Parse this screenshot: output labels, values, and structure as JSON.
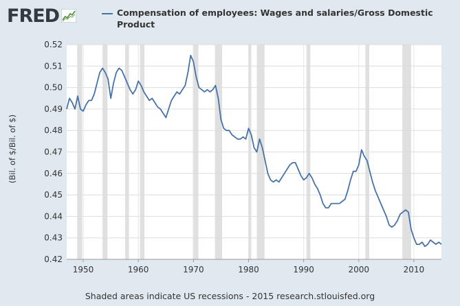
{
  "brand": {
    "logo_text": "FRED"
  },
  "legend": {
    "label": "Compensation of employees: Wages and salaries/Gross Domestic Product"
  },
  "footer": {
    "note": "Shaded areas indicate US recessions - 2015 research.stlouisfed.org"
  },
  "colors": {
    "line": "#4572a7",
    "recession": "#e0e0e0",
    "background": "#e1e9f0",
    "plot_bg": "#ffffff"
  },
  "chart_data": {
    "type": "line",
    "title": "",
    "xlabel": "",
    "ylabel": "(Bil. of $/Bil. of $)",
    "xlim": [
      1947,
      2015
    ],
    "ylim": [
      0.42,
      0.52
    ],
    "grid": true,
    "legend_position": "top",
    "x_ticks": [
      1950,
      1960,
      1970,
      1980,
      1990,
      2000,
      2010
    ],
    "x_tick_labels": [
      "1950",
      "1960",
      "1970",
      "1980",
      "1990",
      "2000",
      "2010"
    ],
    "y_ticks": [
      0.42,
      0.43,
      0.44,
      0.45,
      0.46,
      0.47,
      0.48,
      0.49,
      0.5,
      0.51,
      0.52
    ],
    "y_tick_labels": [
      "0.42",
      "0.43",
      "0.44",
      "0.45",
      "0.46",
      "0.47",
      "0.48",
      "0.49",
      "0.50",
      "0.51",
      "0.52"
    ],
    "recessions": [
      [
        1948.9,
        1949.8
      ],
      [
        1953.5,
        1954.4
      ],
      [
        1957.6,
        1958.3
      ],
      [
        1960.3,
        1961.1
      ],
      [
        1969.9,
        1970.9
      ],
      [
        1973.9,
        1975.2
      ],
      [
        1980.0,
        1980.5
      ],
      [
        1981.5,
        1982.9
      ],
      [
        1990.5,
        1991.2
      ],
      [
        2001.2,
        2001.9
      ],
      [
        2007.9,
        2009.5
      ]
    ],
    "series": [
      {
        "name": "Compensation of employees: Wages and salaries/Gross Domestic Product",
        "x": [
          1947.0,
          1947.5,
          1948.0,
          1948.5,
          1949.0,
          1949.5,
          1950.0,
          1950.5,
          1951.0,
          1951.5,
          1952.0,
          1952.5,
          1953.0,
          1953.5,
          1954.0,
          1954.5,
          1955.0,
          1955.5,
          1956.0,
          1956.5,
          1957.0,
          1957.5,
          1958.0,
          1958.5,
          1959.0,
          1959.5,
          1960.0,
          1960.5,
          1961.0,
          1961.5,
          1962.0,
          1962.5,
          1963.0,
          1963.5,
          1964.0,
          1964.5,
          1965.0,
          1965.5,
          1966.0,
          1966.5,
          1967.0,
          1967.5,
          1968.0,
          1968.5,
          1969.0,
          1969.5,
          1970.0,
          1970.5,
          1971.0,
          1971.5,
          1972.0,
          1972.5,
          1973.0,
          1973.5,
          1974.0,
          1974.5,
          1975.0,
          1975.5,
          1976.0,
          1976.5,
          1977.0,
          1977.5,
          1978.0,
          1978.5,
          1979.0,
          1979.5,
          1980.0,
          1980.5,
          1981.0,
          1981.5,
          1982.0,
          1982.5,
          1983.0,
          1983.5,
          1984.0,
          1984.5,
          1985.0,
          1985.5,
          1986.0,
          1986.5,
          1987.0,
          1987.5,
          1988.0,
          1988.5,
          1989.0,
          1989.5,
          1990.0,
          1990.5,
          1991.0,
          1991.5,
          1992.0,
          1992.5,
          1993.0,
          1993.5,
          1994.0,
          1994.5,
          1995.0,
          1995.5,
          1996.0,
          1996.5,
          1997.0,
          1997.5,
          1998.0,
          1998.5,
          1999.0,
          1999.5,
          2000.0,
          2000.5,
          2001.0,
          2001.5,
          2002.0,
          2002.5,
          2003.0,
          2003.5,
          2004.0,
          2004.5,
          2005.0,
          2005.5,
          2006.0,
          2006.5,
          2007.0,
          2007.5,
          2008.0,
          2008.5,
          2009.0,
          2009.5,
          2010.0,
          2010.5,
          2011.0,
          2011.5,
          2012.0,
          2012.5,
          2013.0,
          2013.5,
          2014.0,
          2014.5,
          2015.0
        ],
        "values": [
          0.49,
          0.495,
          0.493,
          0.49,
          0.496,
          0.49,
          0.489,
          0.492,
          0.494,
          0.494,
          0.497,
          0.502,
          0.507,
          0.509,
          0.507,
          0.504,
          0.495,
          0.502,
          0.507,
          0.509,
          0.508,
          0.505,
          0.502,
          0.499,
          0.497,
          0.499,
          0.503,
          0.501,
          0.498,
          0.496,
          0.494,
          0.495,
          0.493,
          0.491,
          0.49,
          0.488,
          0.486,
          0.49,
          0.494,
          0.496,
          0.498,
          0.497,
          0.499,
          0.501,
          0.507,
          0.515,
          0.512,
          0.505,
          0.5,
          0.499,
          0.498,
          0.499,
          0.498,
          0.499,
          0.501,
          0.495,
          0.485,
          0.481,
          0.48,
          0.48,
          0.478,
          0.477,
          0.476,
          0.476,
          0.477,
          0.476,
          0.481,
          0.478,
          0.472,
          0.47,
          0.476,
          0.472,
          0.466,
          0.46,
          0.457,
          0.456,
          0.457,
          0.456,
          0.458,
          0.46,
          0.462,
          0.464,
          0.465,
          0.465,
          0.462,
          0.459,
          0.457,
          0.458,
          0.46,
          0.458,
          0.455,
          0.453,
          0.45,
          0.446,
          0.444,
          0.444,
          0.446,
          0.446,
          0.446,
          0.446,
          0.447,
          0.448,
          0.452,
          0.457,
          0.461,
          0.461,
          0.464,
          0.471,
          0.468,
          0.466,
          0.461,
          0.456,
          0.452,
          0.449,
          0.446,
          0.443,
          0.44,
          0.436,
          0.435,
          0.436,
          0.438,
          0.441,
          0.442,
          0.443,
          0.442,
          0.434,
          0.43,
          0.427,
          0.427,
          0.428,
          0.426,
          0.427,
          0.429,
          0.428,
          0.427,
          0.428,
          0.427
        ]
      }
    ]
  }
}
